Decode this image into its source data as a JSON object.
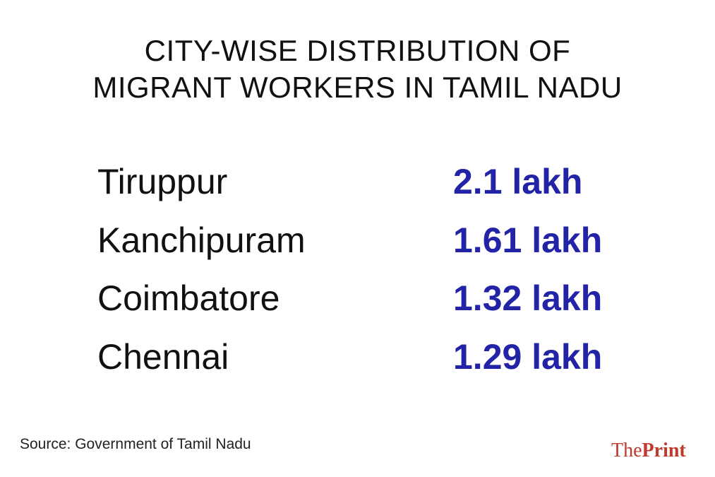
{
  "title": [
    "CITY-WISE DISTRIBUTION OF",
    "MIGRANT WORKERS IN TAMIL NADU"
  ],
  "rows": [
    {
      "city": "Tiruppur",
      "value": "2.1 lakh"
    },
    {
      "city": "Kanchipuram",
      "value": "1.61 lakh"
    },
    {
      "city": "Coimbatore",
      "value": "1.32 lakh"
    },
    {
      "city": "Chennai",
      "value": "1.29 lakh"
    }
  ],
  "source": "Source: Government of Tamil Nadu",
  "logo": [
    "The",
    "Print"
  ]
}
